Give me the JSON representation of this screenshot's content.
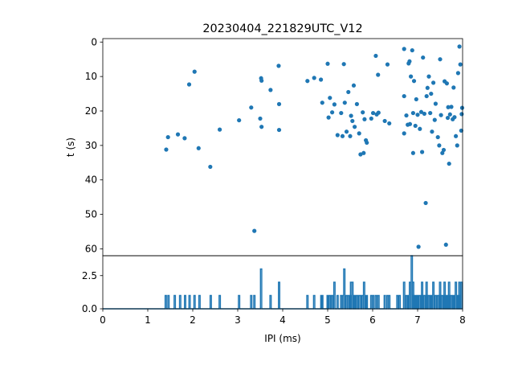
{
  "chart_data": [
    {
      "type": "scatter",
      "title": "20230404_221829UTC_V12",
      "xlabel": "",
      "ylabel": "t (s)",
      "xlim": [
        0,
        8
      ],
      "ylim": [
        62,
        -1
      ],
      "y_inverted": true,
      "yticks": [
        "0",
        "10",
        "20",
        "30",
        "40",
        "50",
        "60"
      ],
      "color": "#1f77b4",
      "points": [
        [
          1.41,
          31.2
        ],
        [
          1.45,
          27.6
        ],
        [
          1.67,
          26.8
        ],
        [
          1.82,
          27.9
        ],
        [
          1.92,
          12.3
        ],
        [
          2.04,
          8.6
        ],
        [
          2.13,
          30.8
        ],
        [
          2.39,
          36.2
        ],
        [
          2.6,
          25.4
        ],
        [
          3.03,
          22.7
        ],
        [
          3.3,
          19.0
        ],
        [
          3.37,
          54.8
        ],
        [
          3.5,
          22.2
        ],
        [
          3.52,
          10.5
        ],
        [
          3.53,
          11.2
        ],
        [
          3.53,
          24.6
        ],
        [
          3.73,
          13.9
        ],
        [
          3.91,
          6.9
        ],
        [
          3.92,
          18.0
        ],
        [
          3.92,
          25.5
        ],
        [
          4.55,
          11.3
        ],
        [
          4.7,
          10.4
        ],
        [
          4.85,
          10.9
        ],
        [
          4.88,
          17.6
        ],
        [
          5.0,
          6.3
        ],
        [
          5.02,
          21.9
        ],
        [
          5.05,
          16.2
        ],
        [
          5.1,
          20.4
        ],
        [
          5.15,
          18.1
        ],
        [
          5.22,
          27.0
        ],
        [
          5.3,
          20.6
        ],
        [
          5.33,
          27.3
        ],
        [
          5.36,
          6.4
        ],
        [
          5.38,
          17.6
        ],
        [
          5.42,
          26.0
        ],
        [
          5.46,
          14.5
        ],
        [
          5.5,
          27.3
        ],
        [
          5.52,
          21.4
        ],
        [
          5.55,
          22.9
        ],
        [
          5.58,
          12.6
        ],
        [
          5.6,
          24.6
        ],
        [
          5.65,
          18.0
        ],
        [
          5.7,
          26.5
        ],
        [
          5.73,
          32.6
        ],
        [
          5.78,
          20.4
        ],
        [
          5.8,
          32.2
        ],
        [
          5.82,
          22.4
        ],
        [
          5.85,
          28.5
        ],
        [
          5.87,
          29.2
        ],
        [
          5.97,
          22.2
        ],
        [
          6.01,
          20.6
        ],
        [
          6.07,
          4.0
        ],
        [
          6.09,
          21.0
        ],
        [
          6.12,
          9.5
        ],
        [
          6.13,
          20.5
        ],
        [
          6.27,
          22.9
        ],
        [
          6.33,
          6.5
        ],
        [
          6.37,
          23.6
        ],
        [
          6.7,
          2.0
        ],
        [
          6.7,
          15.7
        ],
        [
          6.7,
          26.5
        ],
        [
          6.75,
          21.3
        ],
        [
          6.78,
          24.0
        ],
        [
          6.8,
          6.2
        ],
        [
          6.82,
          5.6
        ],
        [
          6.83,
          23.8
        ],
        [
          6.85,
          10.0
        ],
        [
          6.88,
          2.4
        ],
        [
          6.9,
          20.6
        ],
        [
          6.9,
          32.2
        ],
        [
          6.92,
          11.3
        ],
        [
          6.95,
          24.3
        ],
        [
          6.97,
          16.6
        ],
        [
          7.0,
          21.1
        ],
        [
          7.02,
          59.4
        ],
        [
          7.05,
          25.2
        ],
        [
          7.08,
          20.3
        ],
        [
          7.1,
          31.9
        ],
        [
          7.12,
          4.5
        ],
        [
          7.15,
          20.8
        ],
        [
          7.18,
          46.7
        ],
        [
          7.2,
          15.7
        ],
        [
          7.22,
          13.3
        ],
        [
          7.25,
          10.0
        ],
        [
          7.28,
          20.6
        ],
        [
          7.3,
          15.0
        ],
        [
          7.32,
          26.0
        ],
        [
          7.35,
          11.8
        ],
        [
          7.38,
          22.6
        ],
        [
          7.4,
          17.9
        ],
        [
          7.45,
          27.6
        ],
        [
          7.48,
          30.0
        ],
        [
          7.5,
          5.0
        ],
        [
          7.52,
          21.2
        ],
        [
          7.55,
          32.2
        ],
        [
          7.58,
          31.3
        ],
        [
          7.6,
          11.4
        ],
        [
          7.63,
          58.8
        ],
        [
          7.65,
          12.0
        ],
        [
          7.67,
          22.0
        ],
        [
          7.68,
          18.9
        ],
        [
          7.7,
          35.3
        ],
        [
          7.72,
          21.0
        ],
        [
          7.75,
          18.8
        ],
        [
          7.78,
          22.4
        ],
        [
          7.8,
          13.2
        ],
        [
          7.82,
          21.8
        ],
        [
          7.85,
          27.3
        ],
        [
          7.88,
          30.0
        ],
        [
          7.9,
          9.0
        ],
        [
          7.93,
          1.3
        ],
        [
          7.95,
          6.5
        ],
        [
          7.97,
          25.7
        ],
        [
          7.98,
          20.9
        ],
        [
          7.99,
          19.1
        ]
      ]
    },
    {
      "type": "line",
      "title": "",
      "xlabel": "IPI (ms)",
      "ylabel": "",
      "xlim": [
        0,
        8
      ],
      "ylim": [
        0,
        4
      ],
      "xticks": [
        "0",
        "1",
        "2",
        "3",
        "4",
        "5",
        "6",
        "7",
        "8"
      ],
      "yticks": [
        "0.0",
        "2.5"
      ],
      "color": "#1f77b4",
      "spikes": [
        [
          1.4,
          1
        ],
        [
          1.46,
          1
        ],
        [
          1.6,
          1
        ],
        [
          1.72,
          1
        ],
        [
          1.83,
          1
        ],
        [
          1.93,
          1
        ],
        [
          2.04,
          1
        ],
        [
          2.15,
          1
        ],
        [
          2.4,
          1
        ],
        [
          2.6,
          1
        ],
        [
          3.03,
          1
        ],
        [
          3.3,
          1
        ],
        [
          3.37,
          1
        ],
        [
          3.52,
          3
        ],
        [
          3.73,
          1
        ],
        [
          3.92,
          2
        ],
        [
          4.55,
          1
        ],
        [
          4.7,
          1
        ],
        [
          4.86,
          1
        ],
        [
          4.88,
          1
        ],
        [
          5.0,
          1
        ],
        [
          5.02,
          1
        ],
        [
          5.05,
          1
        ],
        [
          5.1,
          1
        ],
        [
          5.15,
          2
        ],
        [
          5.22,
          1
        ],
        [
          5.3,
          1
        ],
        [
          5.34,
          1
        ],
        [
          5.37,
          3
        ],
        [
          5.42,
          1
        ],
        [
          5.46,
          1
        ],
        [
          5.5,
          1
        ],
        [
          5.52,
          2
        ],
        [
          5.55,
          2
        ],
        [
          5.58,
          1
        ],
        [
          5.6,
          1
        ],
        [
          5.65,
          1
        ],
        [
          5.7,
          1
        ],
        [
          5.73,
          1
        ],
        [
          5.78,
          1
        ],
        [
          5.81,
          2
        ],
        [
          5.85,
          1
        ],
        [
          5.87,
          1
        ],
        [
          5.97,
          1
        ],
        [
          6.01,
          1
        ],
        [
          6.07,
          1
        ],
        [
          6.1,
          1
        ],
        [
          6.13,
          1
        ],
        [
          6.27,
          1
        ],
        [
          6.33,
          1
        ],
        [
          6.37,
          1
        ],
        [
          6.55,
          1
        ],
        [
          6.6,
          1
        ],
        [
          6.7,
          2
        ],
        [
          6.75,
          1
        ],
        [
          6.78,
          1
        ],
        [
          6.8,
          1
        ],
        [
          6.83,
          2
        ],
        [
          6.87,
          4
        ],
        [
          6.9,
          2
        ],
        [
          6.92,
          1
        ],
        [
          6.95,
          1
        ],
        [
          6.97,
          1
        ],
        [
          7.0,
          1
        ],
        [
          7.02,
          1
        ],
        [
          7.05,
          1
        ],
        [
          7.08,
          1
        ],
        [
          7.1,
          2
        ],
        [
          7.12,
          1
        ],
        [
          7.15,
          1
        ],
        [
          7.18,
          1
        ],
        [
          7.2,
          2
        ],
        [
          7.22,
          1
        ],
        [
          7.25,
          1
        ],
        [
          7.28,
          1
        ],
        [
          7.3,
          1
        ],
        [
          7.32,
          1
        ],
        [
          7.35,
          2
        ],
        [
          7.4,
          1
        ],
        [
          7.45,
          1
        ],
        [
          7.48,
          1
        ],
        [
          7.5,
          2
        ],
        [
          7.55,
          1
        ],
        [
          7.58,
          1
        ],
        [
          7.6,
          2
        ],
        [
          7.63,
          1
        ],
        [
          7.65,
          1
        ],
        [
          7.68,
          1
        ],
        [
          7.7,
          2
        ],
        [
          7.72,
          1
        ],
        [
          7.75,
          1
        ],
        [
          7.78,
          1
        ],
        [
          7.8,
          1
        ],
        [
          7.82,
          1
        ],
        [
          7.85,
          2
        ],
        [
          7.88,
          1
        ],
        [
          7.9,
          1
        ],
        [
          7.93,
          2
        ],
        [
          7.95,
          1
        ],
        [
          7.98,
          2
        ]
      ]
    }
  ]
}
